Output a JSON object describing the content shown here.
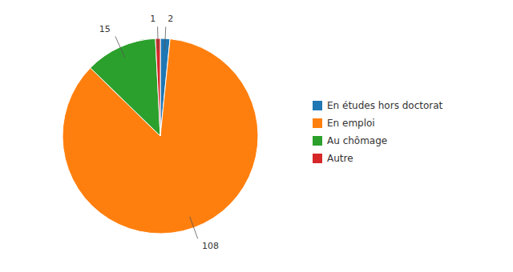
{
  "chart_data": {
    "type": "pie",
    "categories": [
      "En études hors doctorat",
      "En emploi",
      "Au chômage",
      "Autre"
    ],
    "values": [
      2,
      108,
      15,
      1
    ],
    "data_labels": true,
    "legend": "right"
  }
}
